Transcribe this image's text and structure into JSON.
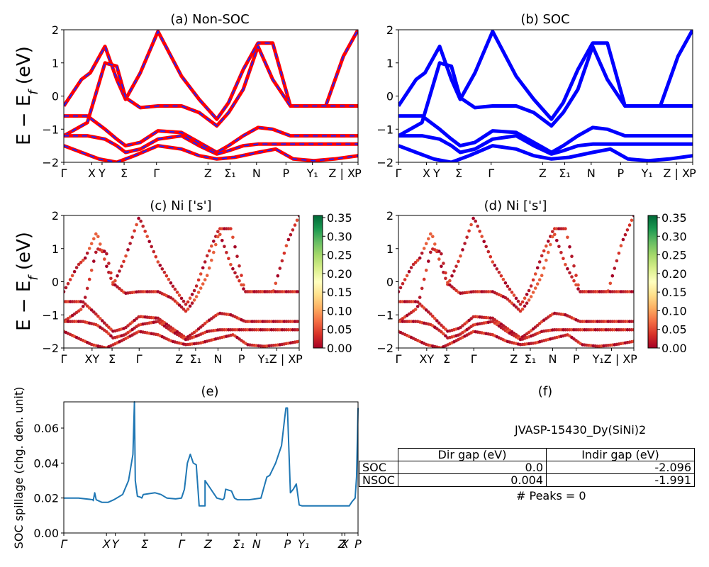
{
  "chart_data": [
    {
      "type": "line",
      "title": "(a) Non-SOC",
      "ylabel": "E − E_f (eV)",
      "ylim": [
        -2,
        2
      ],
      "yticks": [
        "−2",
        "−1",
        "0",
        "1",
        "2"
      ],
      "xtick_labels": [
        "Γ",
        "X",
        "Y",
        "Σ",
        "Γ",
        "Z",
        "Σ₁",
        "N",
        "P",
        "Y₁",
        "Z | X",
        "P"
      ],
      "series_colors": {
        "non_soc": "#ff0000",
        "soc_overlay": "#2020ff"
      },
      "bands": [
        {
          "x": [
            0,
            0.06,
            0.09,
            0.14,
            0.18,
            0.21,
            0.26,
            0.32,
            0.4,
            0.46,
            0.52,
            0.56,
            0.61,
            0.66,
            0.71,
            0.77,
            0.83,
            0.89,
            0.95,
            1.0
          ],
          "y": [
            -0.3,
            0.5,
            0.7,
            1.5,
            0.5,
            -0.1,
            0.7,
            1.95,
            0.6,
            -0.1,
            -0.7,
            -0.2,
            0.8,
            1.6,
            1.6,
            -0.3,
            -0.3,
            -0.3,
            1.2,
            2.0
          ]
        },
        {
          "x": [
            0,
            0.08,
            0.14,
            0.18,
            0.21,
            0.26,
            0.32,
            0.4,
            0.46,
            0.52,
            0.56,
            0.61,
            0.66,
            0.71,
            0.77,
            0.82,
            0.89,
            1.0
          ],
          "y": [
            -1.2,
            -0.8,
            1.0,
            0.9,
            -0.05,
            -0.35,
            -0.3,
            -0.3,
            -0.5,
            -0.9,
            -0.5,
            0.2,
            1.5,
            0.5,
            -0.3,
            -0.3,
            -0.3,
            -0.3
          ]
        },
        {
          "x": [
            0,
            0.08,
            0.14,
            0.18,
            0.21,
            0.26,
            0.32,
            0.4,
            0.46,
            0.52,
            0.56,
            0.61,
            0.66,
            0.71,
            0.77,
            0.82,
            0.89,
            1.0
          ],
          "y": [
            -0.6,
            -0.6,
            -1.0,
            -1.3,
            -1.5,
            -1.4,
            -1.05,
            -1.1,
            -1.4,
            -1.7,
            -1.5,
            -1.2,
            -0.95,
            -1.0,
            -1.2,
            -1.2,
            -1.2,
            -1.2
          ]
        },
        {
          "x": [
            0,
            0.08,
            0.14,
            0.18,
            0.21,
            0.26,
            0.32,
            0.4,
            0.46,
            0.52,
            0.56,
            0.61,
            0.66,
            0.71,
            0.77,
            0.82,
            0.89,
            1.0
          ],
          "y": [
            -1.2,
            -1.2,
            -1.3,
            -1.5,
            -1.7,
            -1.6,
            -1.3,
            -1.2,
            -1.5,
            -1.75,
            -1.65,
            -1.5,
            -1.45,
            -1.45,
            -1.45,
            -1.45,
            -1.45,
            -1.45
          ]
        },
        {
          "x": [
            0,
            0.06,
            0.12,
            0.18,
            0.24,
            0.32,
            0.4,
            0.46,
            0.52,
            0.58,
            0.66,
            0.72,
            0.78,
            0.85,
            0.92,
            1.0
          ],
          "y": [
            -1.5,
            -1.7,
            -1.9,
            -2.0,
            -1.8,
            -1.5,
            -1.6,
            -1.8,
            -1.9,
            -1.85,
            -1.7,
            -1.6,
            -1.9,
            -1.95,
            -1.9,
            -1.8
          ]
        }
      ]
    },
    {
      "type": "line",
      "title": "(b) SOC",
      "ylim": [
        -2,
        2
      ],
      "yticks": [
        "−2",
        "−1",
        "0",
        "1",
        "2"
      ],
      "xtick_labels": [
        "Γ",
        "X",
        "Y",
        "Σ",
        "Γ",
        "Z",
        "Σ₁",
        "N",
        "P",
        "Y₁",
        "Z | X",
        "P"
      ],
      "series_colors": {
        "soc": "#0000ff"
      }
    },
    {
      "type": "scatter",
      "title": "(c)  Ni ['s']",
      "ylabel": "E − E_f (eV)",
      "ylim": [
        -2,
        2
      ],
      "yticks": [
        "−2",
        "−1",
        "0",
        "1",
        "2"
      ],
      "xtick_labels": [
        "Γ",
        "XY",
        "Σ",
        "Γ",
        "Z",
        "Σ₁",
        "N",
        "P",
        "Y₁Z | X",
        "P"
      ],
      "colorbar": {
        "cmap": "RdYlGn",
        "range": [
          0.0,
          0.35
        ],
        "ticks": [
          "0.35",
          "0.30",
          "0.25",
          "0.20",
          "0.15",
          "0.10",
          "0.05",
          "0.00"
        ]
      }
    },
    {
      "type": "scatter",
      "title": "(d) Ni ['s']",
      "ylim": [
        -2,
        2
      ],
      "yticks": [
        "−2",
        "−1",
        "0",
        "1",
        "2"
      ],
      "xtick_labels": [
        "Γ",
        "XY",
        "Σ",
        "Γ",
        "Z",
        "Σ₁",
        "N",
        "P",
        "Y₁Z | X",
        "P"
      ],
      "colorbar": {
        "cmap": "RdYlGn",
        "range": [
          0.0,
          0.35
        ],
        "ticks": [
          "0.35",
          "0.30",
          "0.25",
          "0.20",
          "0.15",
          "0.10",
          "0.05",
          "0.00"
        ]
      }
    },
    {
      "type": "line",
      "title": "(e)",
      "ylabel": "SOC spillage (chg. den. unit)",
      "ylim": [
        0,
        0.075
      ],
      "yticks": [
        "0.00",
        "0.02",
        "0.04",
        "0.06"
      ],
      "xtick_labels": [
        "Γ",
        "X",
        "Y",
        "Σ",
        "Γ",
        "Z",
        "Σ₁",
        "N",
        "P",
        "Y₁",
        "Z",
        "X",
        "P"
      ],
      "color": "#1f77b4",
      "x": [
        0,
        0.05,
        0.1,
        0.1,
        0.105,
        0.11,
        0.13,
        0.15,
        0.17,
        0.2,
        0.22,
        0.235,
        0.24,
        0.243,
        0.25,
        0.26,
        0.265,
        0.27,
        0.29,
        0.31,
        0.33,
        0.35,
        0.38,
        0.4,
        0.41,
        0.42,
        0.43,
        0.44,
        0.45,
        0.46,
        0.47,
        0.475,
        0.48,
        0.48,
        0.52,
        0.54,
        0.545,
        0.55,
        0.57,
        0.58,
        0.59,
        0.6,
        0.605,
        0.61,
        0.63,
        0.67,
        0.69,
        0.7,
        0.72,
        0.74,
        0.75,
        0.755,
        0.76,
        0.77,
        0.78,
        0.79,
        0.8,
        0.81,
        0.86,
        0.93,
        0.97,
        0.98,
        0.99,
        0.995,
        1.0
      ],
      "y": [
        0.02,
        0.02,
        0.019,
        0.0185,
        0.023,
        0.019,
        0.0175,
        0.0175,
        0.019,
        0.022,
        0.03,
        0.045,
        0.075,
        0.03,
        0.021,
        0.0205,
        0.02,
        0.022,
        0.0225,
        0.023,
        0.022,
        0.02,
        0.0195,
        0.02,
        0.025,
        0.04,
        0.045,
        0.04,
        0.039,
        0.0155,
        0.0155,
        0.0155,
        0.0155,
        0.03,
        0.02,
        0.019,
        0.02,
        0.025,
        0.024,
        0.02,
        0.019,
        0.019,
        0.019,
        0.019,
        0.019,
        0.02,
        0.032,
        0.033,
        0.04,
        0.05,
        0.065,
        0.0715,
        0.0715,
        0.023,
        0.025,
        0.028,
        0.016,
        0.0155,
        0.0155,
        0.0155,
        0.0155,
        0.018,
        0.02,
        0.032,
        0.0715
      ]
    }
  ],
  "info_panel": {
    "title": "(f)",
    "jid": "JVASP-15430_Dy(SiNi)2",
    "table": {
      "headers": [
        "Dir gap (eV)",
        "Indir gap (eV)"
      ],
      "rows": [
        {
          "label": "SOC",
          "dir": "0.0",
          "indir": "-2.096"
        },
        {
          "label": "NSOC",
          "dir": "0.004",
          "indir": "-1.991"
        }
      ]
    },
    "peaks": "# Peaks = 0"
  }
}
